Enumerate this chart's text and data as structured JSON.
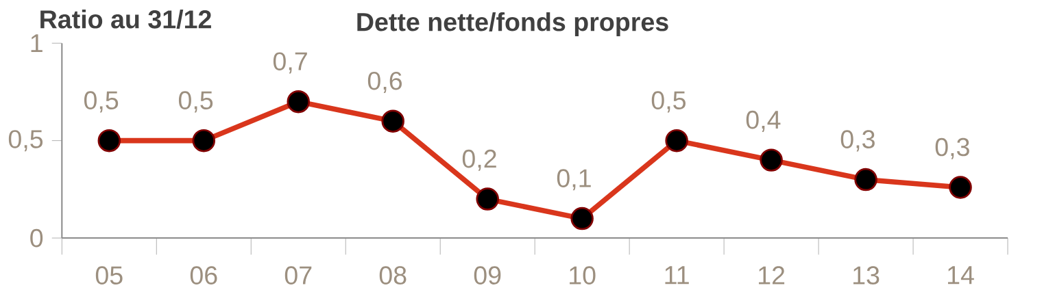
{
  "chart_data": {
    "type": "line",
    "title": "Dette nette/fonds propres",
    "annotations": [
      "Ratio au 31/12"
    ],
    "categories": [
      "05",
      "06",
      "07",
      "08",
      "09",
      "10",
      "11",
      "12",
      "13",
      "14"
    ],
    "values": [
      0.5,
      0.5,
      0.7,
      0.6,
      0.2,
      0.1,
      0.5,
      0.4,
      0.3,
      0.26
    ],
    "value_labels": [
      "0,5",
      "0,5",
      "0,7",
      "0,6",
      "0,2",
      "0,1",
      "0,5",
      "0,4",
      "0,3",
      "0,3"
    ],
    "color": "#d9361c",
    "marker": "circle",
    "line_style": "solid",
    "ylim": [
      0,
      1
    ],
    "yticks": [
      0,
      {
        "value": 0.5,
        "label": "0,5"
      },
      1
    ]
  }
}
